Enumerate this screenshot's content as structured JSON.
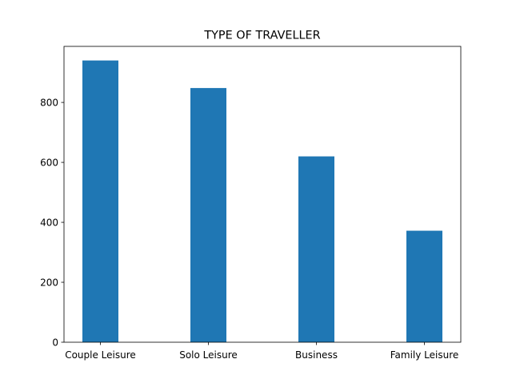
{
  "chart_data": {
    "type": "bar",
    "title": "TYPE OF TRAVELLER",
    "xlabel": "",
    "ylabel": "",
    "categories": [
      "Couple Leisure",
      "Solo Leisure",
      "Business",
      "Family Leisure"
    ],
    "values": [
      940,
      848,
      620,
      372
    ],
    "ylim": [
      0,
      987
    ],
    "yticks": [
      0,
      200,
      400,
      600,
      800
    ],
    "bar_color": "#1f77b4",
    "grid": false,
    "legend": "none"
  }
}
